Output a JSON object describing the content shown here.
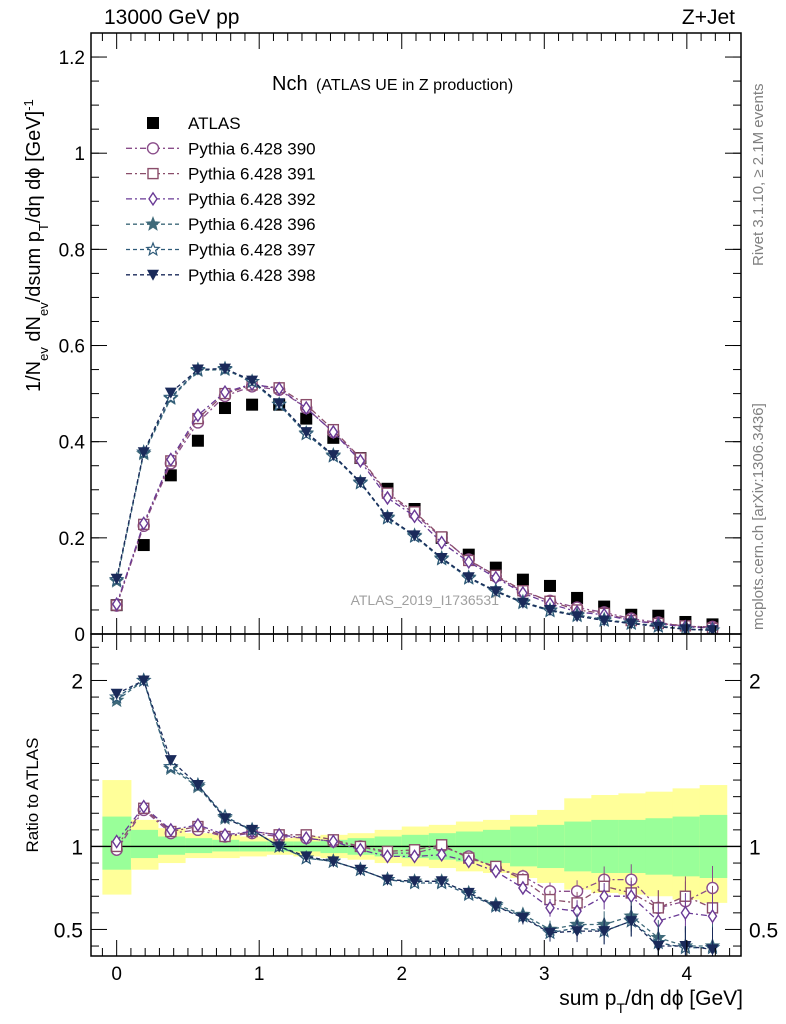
{
  "header": {
    "left": "13000 GeV pp",
    "right": "Z+Jet"
  },
  "side_labels": {
    "top": "Rivet 3.1.10, ≥ 2.1M events",
    "bottom": "mcplots.cern.ch [arXiv:1306.3436]"
  },
  "chart_data": [
    {
      "type": "scatter",
      "title_main": "Nch",
      "title_sub": "(ATLAS UE in Z production)",
      "watermark": "ATLAS_2019_I1736531",
      "ylabel": "1/N_ev dN_ev/dsum p_T/dη dφ [GeV]^-1",
      "xlim": [
        -0.18,
        4.38
      ],
      "ylim": [
        0,
        1.25
      ],
      "yticks": [
        "0",
        "0.2",
        "0.4",
        "0.6",
        "0.8",
        "1",
        "1.2"
      ],
      "legend_position": "top-left",
      "x": [
        0.0,
        0.19,
        0.38,
        0.57,
        0.76,
        0.95,
        1.14,
        1.33,
        1.52,
        1.71,
        1.9,
        2.09,
        2.28,
        2.47,
        2.66,
        2.85,
        3.04,
        3.23,
        3.42,
        3.61,
        3.8,
        3.99,
        4.18
      ],
      "series": [
        {
          "name": "ATLAS",
          "marker": "filled-square",
          "color": "#000000",
          "values": [
            0.06,
            0.185,
            0.33,
            0.402,
            0.47,
            0.477,
            0.477,
            0.448,
            0.408,
            0.366,
            0.302,
            0.26,
            0.2,
            0.165,
            0.138,
            0.113,
            0.1,
            0.075,
            0.057,
            0.04,
            0.038,
            0.025,
            0.02
          ]
        },
        {
          "name": "Pythia 6.428 390",
          "marker": "open-circle",
          "color": "#8a4d8a",
          "values": [
            0.059,
            0.225,
            0.355,
            0.44,
            0.495,
            0.515,
            0.508,
            0.47,
            0.42,
            0.365,
            0.29,
            0.25,
            0.2,
            0.155,
            0.12,
            0.088,
            0.069,
            0.055,
            0.045,
            0.032,
            0.024,
            0.016,
            0.015
          ]
        },
        {
          "name": "Pythia 6.428 391",
          "marker": "open-square",
          "color": "#8a4d6a",
          "values": [
            0.06,
            0.228,
            0.36,
            0.448,
            0.5,
            0.518,
            0.512,
            0.477,
            0.425,
            0.366,
            0.293,
            0.254,
            0.202,
            0.153,
            0.122,
            0.09,
            0.068,
            0.05,
            0.043,
            0.028,
            0.022,
            0.017,
            0.012
          ]
        },
        {
          "name": "Pythia 6.428 392",
          "marker": "open-diamond",
          "color": "#6a3a96",
          "values": [
            0.062,
            0.23,
            0.363,
            0.455,
            0.503,
            0.52,
            0.51,
            0.47,
            0.42,
            0.36,
            0.283,
            0.245,
            0.19,
            0.15,
            0.117,
            0.085,
            0.063,
            0.046,
            0.04,
            0.028,
            0.021,
            0.015,
            0.012
          ]
        },
        {
          "name": "Pythia 6.428 396",
          "marker": "filled-star",
          "color": "#3f6a7a",
          "values": [
            0.11,
            0.375,
            0.49,
            0.548,
            0.55,
            0.525,
            0.478,
            0.418,
            0.372,
            0.316,
            0.243,
            0.205,
            0.158,
            0.118,
            0.09,
            0.067,
            0.05,
            0.04,
            0.03,
            0.023,
            0.017,
            0.01,
            0.008
          ]
        },
        {
          "name": "Pythia 6.428 397",
          "marker": "open-star",
          "color": "#2e5a78",
          "values": [
            0.113,
            0.378,
            0.492,
            0.55,
            0.552,
            0.525,
            0.477,
            0.416,
            0.37,
            0.314,
            0.241,
            0.203,
            0.156,
            0.116,
            0.088,
            0.065,
            0.048,
            0.038,
            0.028,
            0.022,
            0.016,
            0.01,
            0.008
          ]
        },
        {
          "name": "Pythia 6.428 398",
          "marker": "filled-triangle-down",
          "color": "#1a2a5a",
          "values": [
            0.115,
            0.378,
            0.502,
            0.55,
            0.552,
            0.527,
            0.48,
            0.42,
            0.372,
            0.316,
            0.243,
            0.205,
            0.158,
            0.118,
            0.089,
            0.065,
            0.05,
            0.037,
            0.028,
            0.022,
            0.015,
            0.01,
            0.008
          ]
        }
      ]
    },
    {
      "type": "scatter",
      "xlabel": "sum p_T/dη dφ [GeV]",
      "ylabel": "Ratio to ATLAS",
      "xlim": [
        -0.18,
        4.38
      ],
      "ylim": [
        0.34,
        2.28
      ],
      "yticks": [
        "0.5",
        "1",
        "2"
      ],
      "xticks": [
        "0",
        "1",
        "2",
        "3",
        "4"
      ],
      "reference_line": 1,
      "bands": {
        "edges": [
          -0.1,
          0.1,
          0.29,
          0.48,
          0.67,
          0.86,
          1.05,
          1.24,
          1.43,
          1.62,
          1.81,
          2.0,
          2.19,
          2.38,
          2.57,
          2.76,
          2.95,
          3.14,
          3.33,
          3.52,
          3.71,
          3.9,
          4.09,
          4.28
        ],
        "yellow_high": [
          1.4,
          1.16,
          1.11,
          1.08,
          1.07,
          1.06,
          1.05,
          1.06,
          1.07,
          1.08,
          1.1,
          1.12,
          1.13,
          1.15,
          1.16,
          1.19,
          1.22,
          1.29,
          1.31,
          1.32,
          1.33,
          1.35,
          1.37
        ],
        "yellow_low": [
          0.71,
          0.86,
          0.9,
          0.93,
          0.93,
          0.94,
          0.95,
          0.94,
          0.93,
          0.92,
          0.9,
          0.88,
          0.87,
          0.85,
          0.84,
          0.81,
          0.78,
          0.74,
          0.72,
          0.71,
          0.7,
          0.68,
          0.66
        ],
        "green_high": [
          1.18,
          1.1,
          1.06,
          1.05,
          1.04,
          1.03,
          1.03,
          1.03,
          1.04,
          1.05,
          1.06,
          1.07,
          1.08,
          1.09,
          1.1,
          1.12,
          1.13,
          1.15,
          1.16,
          1.16,
          1.17,
          1.18,
          1.19
        ],
        "green_low": [
          0.86,
          0.93,
          0.95,
          0.96,
          0.97,
          0.97,
          0.97,
          0.97,
          0.96,
          0.95,
          0.94,
          0.93,
          0.92,
          0.91,
          0.9,
          0.88,
          0.87,
          0.85,
          0.84,
          0.84,
          0.83,
          0.82,
          0.81
        ]
      },
      "series": [
        {
          "name": "Pythia 6.428 390",
          "marker": "open-circle",
          "color": "#8a4d8a",
          "values": [
            0.98,
            1.22,
            1.08,
            1.1,
            1.06,
            1.08,
            1.06,
            1.05,
            1.03,
            1.0,
            0.96,
            0.96,
            1.0,
            0.94,
            0.87,
            0.82,
            0.73,
            0.73,
            0.8,
            0.8,
            0.63,
            0.67,
            0.75
          ]
        },
        {
          "name": "Pythia 6.428 391",
          "marker": "open-square",
          "color": "#8a4d6a",
          "values": [
            1.0,
            1.23,
            1.09,
            1.12,
            1.06,
            1.09,
            1.07,
            1.07,
            1.04,
            1.0,
            0.97,
            0.98,
            1.01,
            0.93,
            0.88,
            0.8,
            0.68,
            0.66,
            0.76,
            0.72,
            0.63,
            0.7,
            0.63
          ]
        },
        {
          "name": "Pythia 6.428 392",
          "marker": "open-diamond",
          "color": "#6a3a96",
          "values": [
            1.03,
            1.24,
            1.1,
            1.13,
            1.07,
            1.09,
            1.07,
            1.05,
            1.03,
            0.98,
            0.94,
            0.94,
            0.95,
            0.91,
            0.85,
            0.75,
            0.63,
            0.61,
            0.7,
            0.7,
            0.55,
            0.6,
            0.58
          ]
        },
        {
          "name": "Pythia 6.428 396",
          "marker": "filled-star",
          "color": "#3f6a7a",
          "values": [
            1.88,
            2.0,
            1.47,
            1.36,
            1.17,
            1.1,
            1.0,
            0.93,
            0.91,
            0.86,
            0.8,
            0.79,
            0.79,
            0.72,
            0.65,
            0.59,
            0.5,
            0.53,
            0.53,
            0.58,
            0.45,
            0.4,
            0.4
          ]
        },
        {
          "name": "Pythia 6.428 397",
          "marker": "open-star",
          "color": "#2e5a78",
          "values": [
            1.9,
            2.0,
            1.48,
            1.37,
            1.18,
            1.1,
            1.0,
            0.93,
            0.91,
            0.86,
            0.8,
            0.78,
            0.78,
            0.71,
            0.64,
            0.58,
            0.48,
            0.51,
            0.49,
            0.55,
            0.42,
            0.39,
            0.39
          ]
        },
        {
          "name": "Pythia 6.428 398",
          "marker": "filled-triangle-down",
          "color": "#1a2a5a",
          "values": [
            1.92,
            2.0,
            1.52,
            1.37,
            1.17,
            1.1,
            1.0,
            0.94,
            0.91,
            0.86,
            0.8,
            0.79,
            0.79,
            0.72,
            0.64,
            0.57,
            0.48,
            0.49,
            0.49,
            0.55,
            0.4,
            0.4,
            0.38
          ]
        }
      ]
    }
  ]
}
